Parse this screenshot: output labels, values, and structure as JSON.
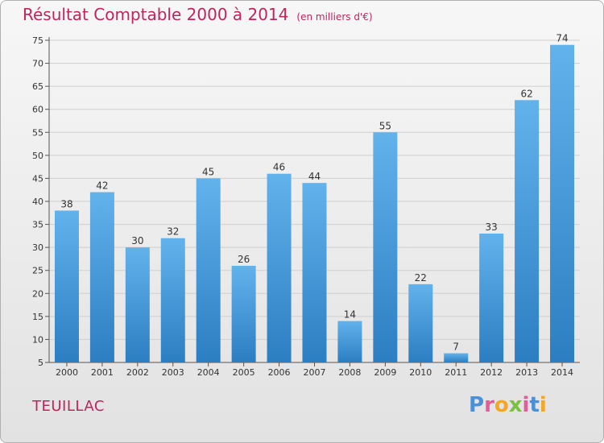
{
  "header": {
    "title": "Résultat Comptable 2000 à 2014",
    "subtitle": "(en milliers d'€)"
  },
  "footer": {
    "city": "TEUILLAC",
    "logo_letters": [
      "P",
      "r",
      "o",
      "x",
      "i",
      "t",
      "i"
    ]
  },
  "colors": {
    "title": "#c0245c",
    "bar_top": "#62b2ec",
    "bar_bottom": "#2b7ec1",
    "grid": "#cfcfcf",
    "logo": [
      "#4a90d9",
      "#e35d9b",
      "#f5a623",
      "#7ac142",
      "#e35d9b",
      "#4a90d9",
      "#f5a623"
    ]
  },
  "chart_data": {
    "type": "bar",
    "title": "Résultat Comptable 2000 à 2014",
    "unit_note": "(en milliers d'€)",
    "xlabel": "",
    "ylabel": "",
    "categories": [
      "2000",
      "2001",
      "2002",
      "2003",
      "2004",
      "2005",
      "2006",
      "2007",
      "2008",
      "2009",
      "2010",
      "2011",
      "2012",
      "2013",
      "2014"
    ],
    "values": [
      38,
      42,
      30,
      32,
      45,
      26,
      46,
      44,
      14,
      55,
      22,
      7,
      33,
      62,
      74
    ],
    "ylim": [
      5,
      75
    ],
    "yticks": [
      5,
      10,
      15,
      20,
      25,
      30,
      35,
      40,
      45,
      50,
      55,
      60,
      65,
      70,
      75
    ],
    "grid": true,
    "legend": "none"
  }
}
